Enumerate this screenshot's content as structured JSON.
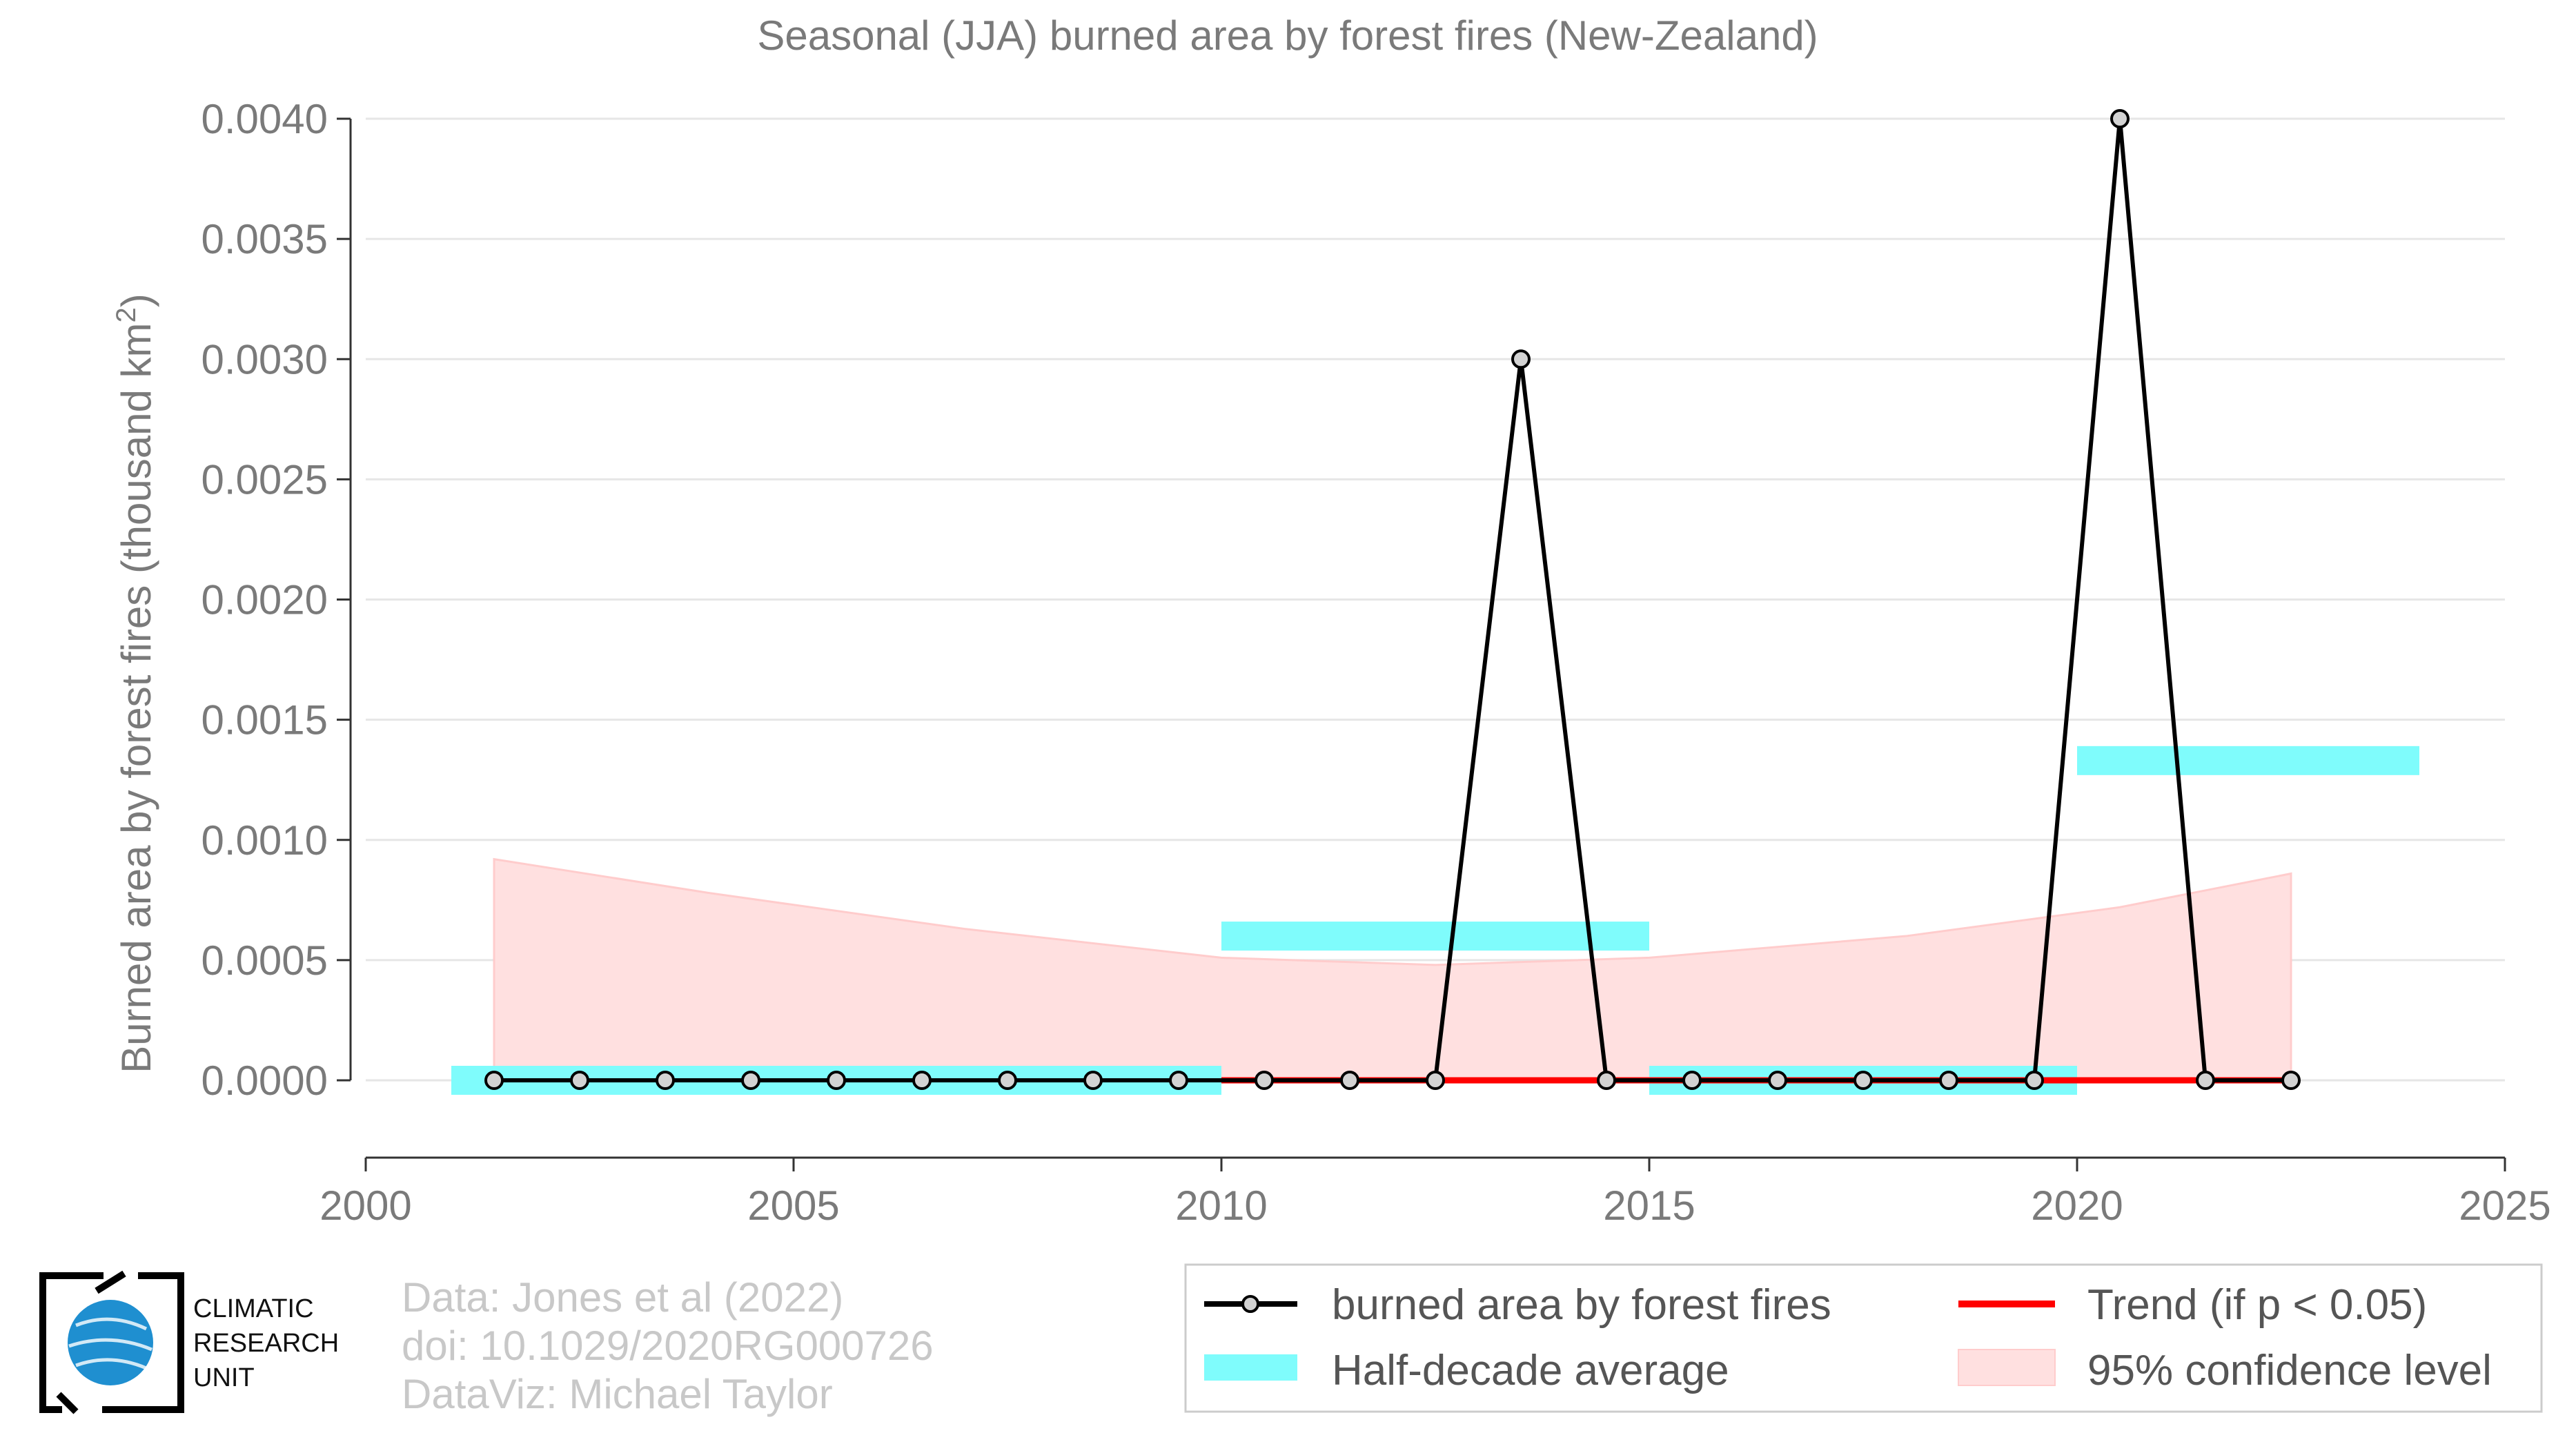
{
  "chart_data": {
    "type": "line",
    "title": "Seasonal (JJA) burned area by forest fires (New-Zealand)",
    "ylabel_main": "Burned area by forest fires (thousand km",
    "ylabel_sup": "2",
    "ylabel_end": ")",
    "xlim": [
      2000,
      2025
    ],
    "ylim": [
      -0.0003,
      0.004
    ],
    "x_ticks": [
      2000,
      2005,
      2010,
      2015,
      2020,
      2025
    ],
    "y_ticks": [
      0.0,
      0.0005,
      0.001,
      0.0015,
      0.002,
      0.0025,
      0.003,
      0.0035,
      0.004
    ],
    "y_tick_labels": [
      "0.0000",
      "0.0005",
      "0.0010",
      "0.0015",
      "0.0020",
      "0.0025",
      "0.0030",
      "0.0035",
      "0.0040"
    ],
    "grid": true,
    "legend_position": "bottom-right",
    "series": [
      {
        "name": "burned area by forest fires",
        "color": "#000000",
        "x": [
          2001.5,
          2002.5,
          2003.5,
          2004.5,
          2005.5,
          2006.5,
          2007.5,
          2008.5,
          2009.5,
          2010.5,
          2011.5,
          2012.5,
          2013.5,
          2014.5,
          2015.5,
          2016.5,
          2017.5,
          2018.5,
          2019.5,
          2020.5,
          2021.5,
          2022.5
        ],
        "values": [
          0,
          0,
          0,
          0,
          0,
          0,
          0,
          0,
          0,
          0,
          0,
          0,
          0.003,
          0,
          0,
          0,
          0,
          0,
          0,
          0.004,
          0,
          0
        ]
      },
      {
        "name": "Trend (if p < 0.05)",
        "color": "#ff0000",
        "x": [
          2010.0,
          2022.5
        ],
        "values": [
          0,
          0
        ]
      }
    ],
    "half_decade_average": {
      "name": "Half-decade average",
      "color": "#7ffcfc",
      "segments": [
        {
          "x0": 2001,
          "x1": 2010,
          "value": 0.0
        },
        {
          "x0": 2010,
          "x1": 2015,
          "value": 0.0006
        },
        {
          "x0": 2015,
          "x1": 2020,
          "value": 0.0
        },
        {
          "x0": 2020,
          "x1": 2024,
          "value": 0.00133
        }
      ]
    },
    "confidence_band": {
      "name": "95% confidence level",
      "color": "#ffd6d6",
      "x": [
        2001.5,
        2004,
        2007,
        2010,
        2012.5,
        2015,
        2018,
        2020.5,
        2022.5
      ],
      "upper": [
        0.00092,
        0.00078,
        0.00063,
        0.00051,
        0.00048,
        0.00051,
        0.0006,
        0.00072,
        0.00086
      ],
      "lower": [
        0,
        0,
        0,
        0,
        0,
        0,
        0,
        0,
        0
      ]
    }
  },
  "credits": {
    "line1": "Data: Jones et al (2022)",
    "line2": "doi: 10.1029/2020RG000726",
    "line3": "DataViz: Michael Taylor"
  },
  "logo": {
    "line1": "CLIMATIC",
    "line2": "RESEARCH",
    "line3": "UNIT"
  },
  "legend": {
    "series_label": "burned area by forest fires",
    "average_label": "Half-decade average",
    "trend_label": "Trend (if p < 0.05)",
    "confidence_label": "95% confidence level"
  }
}
